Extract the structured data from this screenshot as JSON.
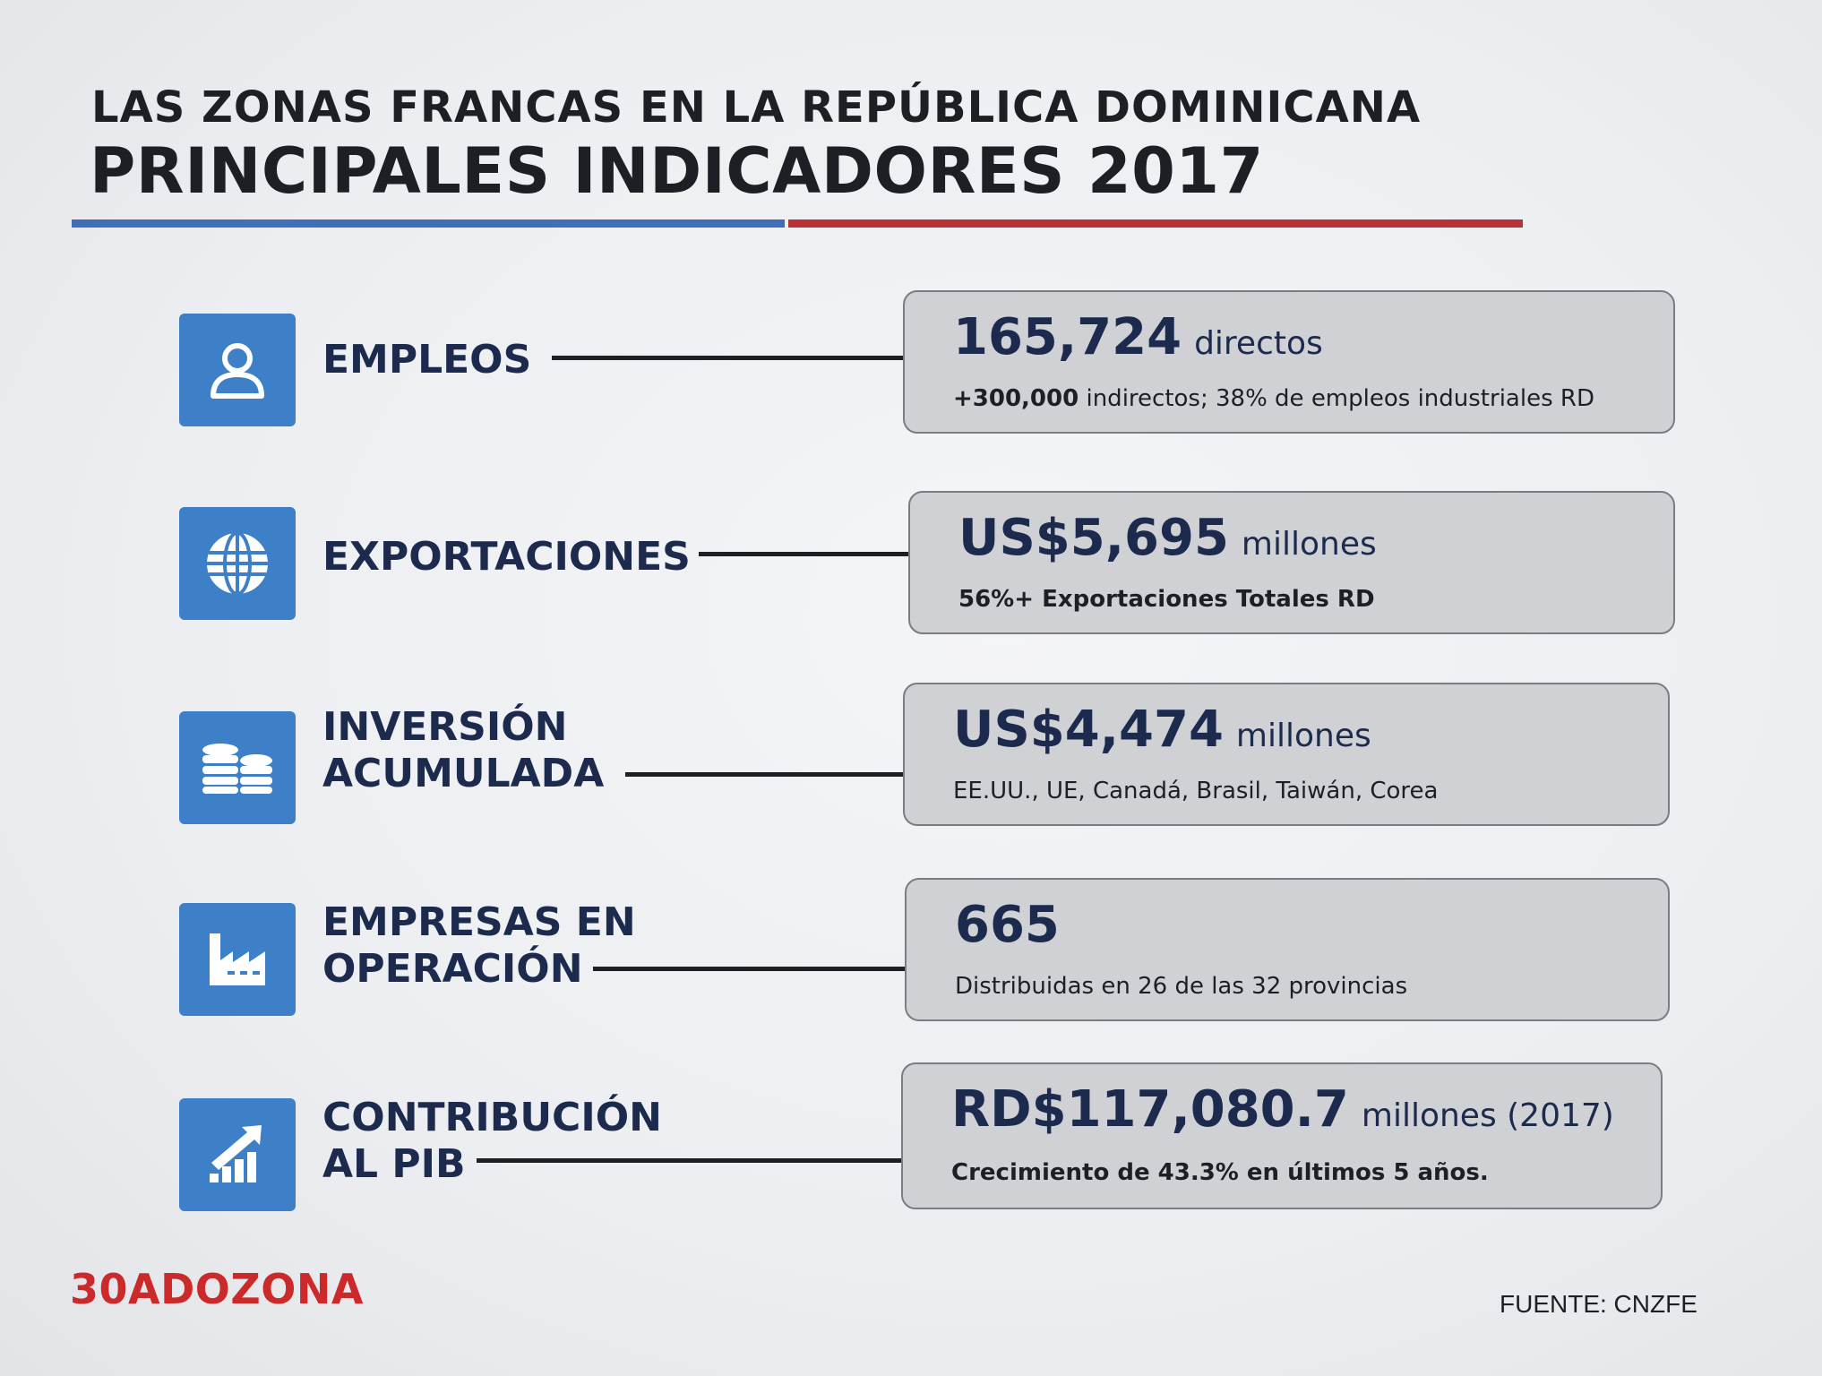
{
  "header": {
    "line1": "LAS ZONAS FRANCAS EN LA REPÚBLICA DOMINICANA",
    "line2": "PRINCIPALES INDICADORES 2017"
  },
  "colors": {
    "icon_blue": "#3d80c8",
    "rule_blue": "#3e6fb8",
    "rule_red": "#b83238",
    "text_navy": "#1c2a4e",
    "logo_red": "#cc2a2a"
  },
  "indicators": [
    {
      "icon": "person-icon",
      "label_lines": [
        "EMPLEOS"
      ],
      "value": "165,724",
      "unit": "directos",
      "sub_bold": "+300,000",
      "sub_rest": " indirectos; 38% de empleos industriales RD"
    },
    {
      "icon": "globe-icon",
      "label_lines": [
        "EXPORTACIONES"
      ],
      "value": "US$5,695",
      "unit": "millones",
      "sub_bold": "56%+ Exportaciones Totales RD",
      "sub_rest": ""
    },
    {
      "icon": "coins-icon",
      "label_lines": [
        "INVERSIÓN",
        "ACUMULADA"
      ],
      "value": "US$4,474",
      "unit": "millones",
      "sub_bold": "",
      "sub_rest": "EE.UU., UE, Canadá, Brasil, Taiwán, Corea"
    },
    {
      "icon": "factory-icon",
      "label_lines": [
        "EMPRESAS EN",
        "OPERACIÓN"
      ],
      "value": "665",
      "unit": "",
      "sub_bold": "",
      "sub_rest": "Distribuidas en 26 de las 32 provincias"
    },
    {
      "icon": "growth-chart-icon",
      "label_lines": [
        "CONTRIBUCIÓN",
        "AL PIB"
      ],
      "value": "RD$117,080.7",
      "unit": "millones (2017)",
      "sub_bold": "Crecimiento de 43.3% en últimos 5 años.",
      "sub_rest": ""
    }
  ],
  "footer": {
    "logo_number": "30",
    "logo_text": "ADOZONA",
    "source": "FUENTE: CNZFE"
  }
}
